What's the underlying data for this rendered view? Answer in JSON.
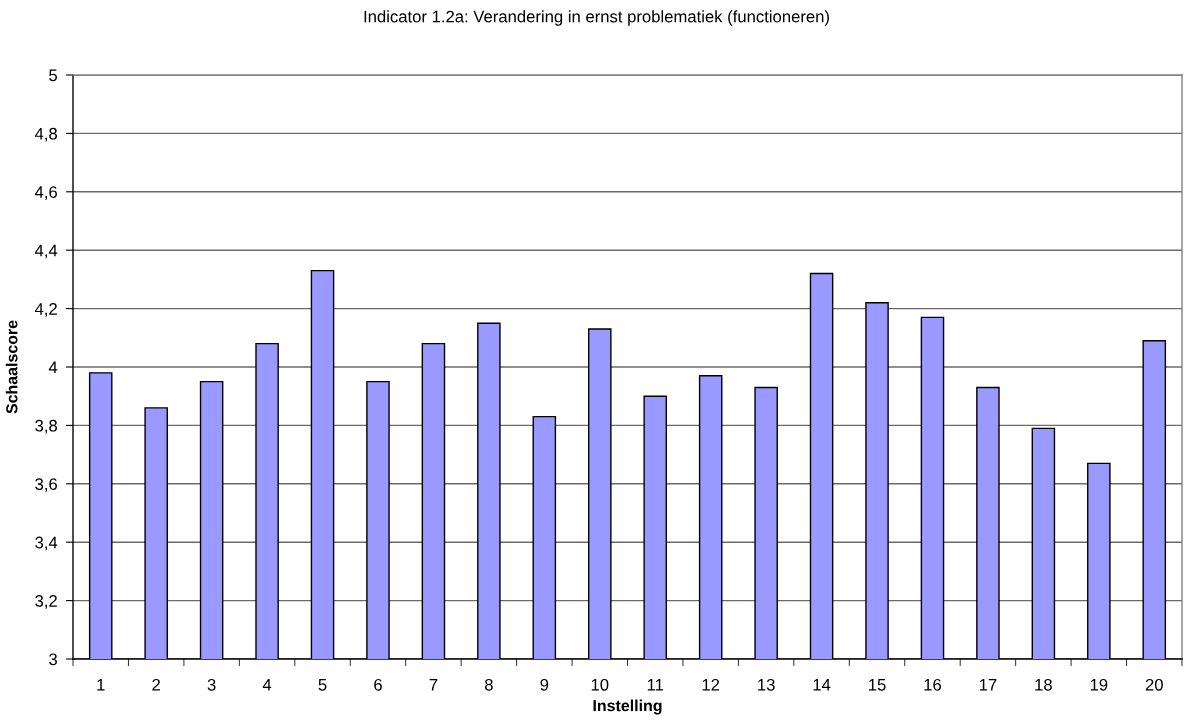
{
  "chart_data": {
    "type": "bar",
    "title": "Indicator 1.2a: Verandering in ernst problematiek (functioneren)",
    "xlabel": "Instelling",
    "ylabel": "Schaalscore",
    "categories": [
      "1",
      "2",
      "3",
      "4",
      "5",
      "6",
      "7",
      "8",
      "9",
      "10",
      "11",
      "12",
      "13",
      "14",
      "15",
      "16",
      "17",
      "18",
      "19",
      "20"
    ],
    "values": [
      3.98,
      3.86,
      3.95,
      4.08,
      4.33,
      3.95,
      4.08,
      4.15,
      3.83,
      4.13,
      3.9,
      3.97,
      3.93,
      4.32,
      4.22,
      4.17,
      3.93,
      3.79,
      3.67,
      4.09
    ],
    "color": "#9999ff",
    "ylim": [
      3,
      5
    ],
    "yticks": [
      3,
      {
        "value": 3.2,
        "label": "3,2"
      },
      {
        "value": 3.4,
        "label": "3,4"
      },
      {
        "value": 3.6,
        "label": "3,6"
      },
      {
        "value": 3.8,
        "label": "3,8"
      },
      4,
      {
        "value": 4.2,
        "label": "4,2"
      },
      {
        "value": 4.4,
        "label": "4,4"
      },
      {
        "value": 4.6,
        "label": "4,6"
      },
      {
        "value": 4.8,
        "label": "4,8"
      },
      5
    ],
    "grid": "y",
    "legend": false
  }
}
